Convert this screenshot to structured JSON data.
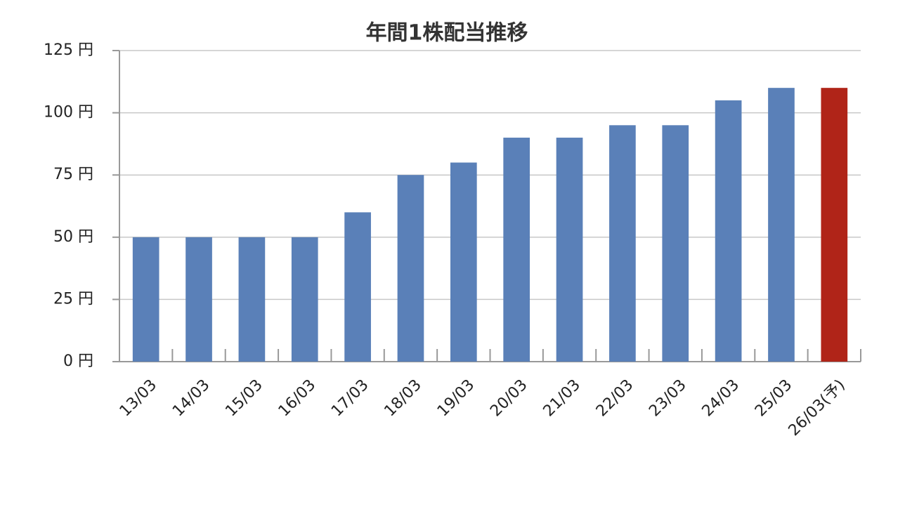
{
  "chart_data": {
    "type": "bar",
    "title": "年間1株配当推移",
    "categories": [
      "13/03",
      "14/03",
      "15/03",
      "16/03",
      "17/03",
      "18/03",
      "19/03",
      "20/03",
      "21/03",
      "22/03",
      "23/03",
      "24/03",
      "25/03",
      "26/03(予)"
    ],
    "values": [
      50,
      50,
      50,
      50,
      60,
      75,
      80,
      90,
      90,
      95,
      95,
      105,
      110,
      110
    ],
    "colors": [
      "#5a80b8",
      "#5a80b8",
      "#5a80b8",
      "#5a80b8",
      "#5a80b8",
      "#5a80b8",
      "#5a80b8",
      "#5a80b8",
      "#5a80b8",
      "#5a80b8",
      "#5a80b8",
      "#5a80b8",
      "#5a80b8",
      "#b02418"
    ],
    "ylim": [
      0,
      125
    ],
    "yticks": [
      {
        "value": 0,
        "label": "0 円"
      },
      {
        "value": 25,
        "label": "25 円"
      },
      {
        "value": 50,
        "label": "50 円"
      },
      {
        "value": 75,
        "label": "75 円"
      },
      {
        "value": 100,
        "label": "100 円"
      },
      {
        "value": 125,
        "label": "125 円"
      }
    ],
    "grid": true
  }
}
